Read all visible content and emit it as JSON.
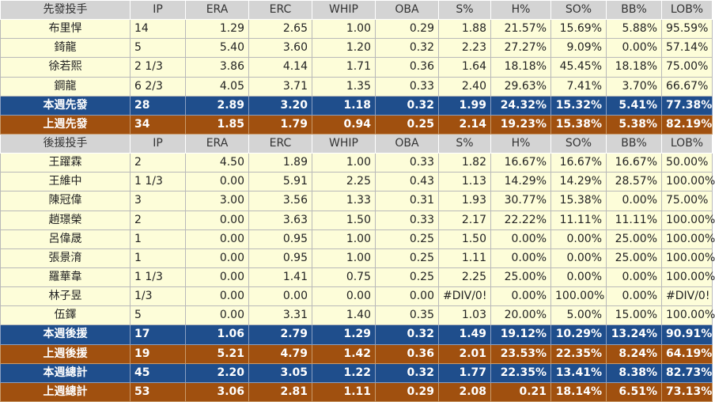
{
  "headers": {
    "starter": [
      "先發投手",
      "IP",
      "ERA",
      "ERC",
      "WHIP",
      "OBA",
      "S%",
      "H%",
      "SO%",
      "BB%",
      "LOB%"
    ],
    "reliever": [
      "後援投手",
      "IP",
      "ERA",
      "ERC",
      "WHIP",
      "OBA",
      "S%",
      "H%",
      "SO%",
      "BB%",
      "LOB%"
    ]
  },
  "starters": [
    [
      "布里悍",
      "14",
      "1.29",
      "2.65",
      "1.00",
      "0.29",
      "1.88",
      "21.57%",
      "15.69%",
      "5.88%",
      "95.59%"
    ],
    [
      "錡龍",
      "5",
      "5.40",
      "3.60",
      "1.20",
      "0.32",
      "2.23",
      "27.27%",
      "9.09%",
      "0.00%",
      "57.14%"
    ],
    [
      "徐若熙",
      "2 1/3",
      "3.86",
      "4.14",
      "1.71",
      "0.36",
      "1.64",
      "18.18%",
      "45.45%",
      "18.18%",
      "75.00%"
    ],
    [
      "鋼龍",
      "6 2/3",
      "4.05",
      "3.71",
      "1.35",
      "0.33",
      "2.40",
      "29.63%",
      "7.41%",
      "3.70%",
      "66.67%"
    ]
  ],
  "starter_week": [
    "本週先發",
    "28",
    "2.89",
    "3.20",
    "1.18",
    "0.32",
    "1.99",
    "24.32%",
    "15.32%",
    "5.41%",
    "77.38%"
  ],
  "starter_last": [
    "上週先發",
    "34",
    "1.85",
    "1.79",
    "0.94",
    "0.25",
    "2.14",
    "19.23%",
    "15.38%",
    "5.38%",
    "82.19%"
  ],
  "relievers": [
    [
      "王躍霖",
      "2",
      "4.50",
      "1.89",
      "1.00",
      "0.33",
      "1.82",
      "16.67%",
      "16.67%",
      "16.67%",
      "50.00%"
    ],
    [
      "王維中",
      "1 1/3",
      "0.00",
      "5.91",
      "2.25",
      "0.43",
      "1.13",
      "14.29%",
      "14.29%",
      "28.57%",
      "100.00%"
    ],
    [
      "陳冠偉",
      "3",
      "3.00",
      "3.56",
      "1.33",
      "0.31",
      "1.93",
      "30.77%",
      "15.38%",
      "0.00%",
      "75.00%"
    ],
    [
      "趙璟榮",
      "2",
      "0.00",
      "3.63",
      "1.50",
      "0.33",
      "2.17",
      "22.22%",
      "11.11%",
      "11.11%",
      "100.00%"
    ],
    [
      "呂偉晟",
      "1",
      "0.00",
      "0.95",
      "1.00",
      "0.25",
      "1.50",
      "0.00%",
      "0.00%",
      "25.00%",
      "100.00%"
    ],
    [
      "張景淯",
      "1",
      "0.00",
      "0.95",
      "1.00",
      "0.25",
      "1.11",
      "0.00%",
      "0.00%",
      "25.00%",
      "100.00%"
    ],
    [
      "羅華韋",
      "1 1/3",
      "0.00",
      "1.41",
      "0.75",
      "0.25",
      "2.25",
      "25.00%",
      "0.00%",
      "0.00%",
      "100.00%"
    ],
    [
      "林子昱",
      "1/3",
      "0.00",
      "0.00",
      "0.00",
      "0.00",
      "#DIV/0!",
      "0.00%",
      "100.00%",
      "0.00%",
      "#DIV/0!"
    ],
    [
      "伍鐸",
      "5",
      "0.00",
      "3.31",
      "1.40",
      "0.35",
      "1.03",
      "20.00%",
      "5.00%",
      "15.00%",
      "100.00%"
    ]
  ],
  "reliever_week": [
    "本週後援",
    "17",
    "1.06",
    "2.79",
    "1.29",
    "0.32",
    "1.49",
    "19.12%",
    "10.29%",
    "13.24%",
    "90.91%"
  ],
  "reliever_last": [
    "上週後援",
    "19",
    "5.21",
    "4.79",
    "1.42",
    "0.36",
    "2.01",
    "23.53%",
    "22.35%",
    "8.24%",
    "64.19%"
  ],
  "total_week": [
    "本週總計",
    "45",
    "2.20",
    "3.05",
    "1.22",
    "0.32",
    "1.77",
    "22.35%",
    "13.41%",
    "8.38%",
    "82.73%"
  ],
  "total_last": [
    "上週總計",
    "53",
    "3.06",
    "2.81",
    "1.11",
    "0.29",
    "2.08",
    "0.21",
    "18.14%",
    "6.51%",
    "73.13%"
  ],
  "colors": {
    "header_bg": "#d4d4d4",
    "row_bg": "#fdfdd9",
    "week_bg": "#1f4e8c",
    "last_bg": "#a0500f"
  }
}
